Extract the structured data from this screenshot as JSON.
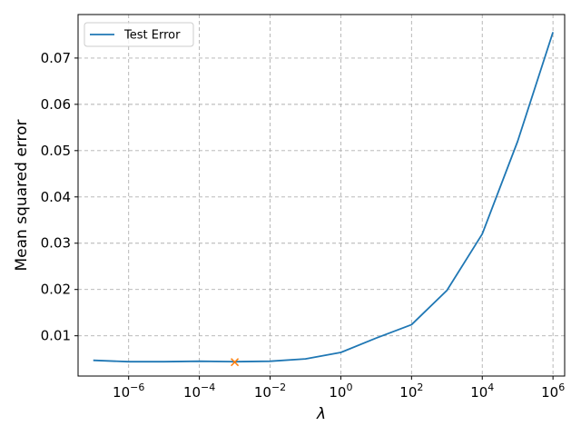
{
  "chart_data": {
    "type": "line",
    "xscale": "log",
    "xlabel": "λ",
    "ylabel": "Mean squared error",
    "xlim": [
      1e-07,
      1000000.0
    ],
    "ylim": [
      0.0,
      0.08
    ],
    "grid": true,
    "legend_position": "top-left",
    "x_ticks": [
      {
        "value": 1e-06,
        "base": "10",
        "exp": "−6"
      },
      {
        "value": 0.0001,
        "base": "10",
        "exp": "−4"
      },
      {
        "value": 0.01,
        "base": "10",
        "exp": "−2"
      },
      {
        "value": 1,
        "base": "10",
        "exp": "0"
      },
      {
        "value": 100,
        "base": "10",
        "exp": "2"
      },
      {
        "value": 10000,
        "base": "10",
        "exp": "4"
      },
      {
        "value": 1000000,
        "base": "10",
        "exp": "6"
      }
    ],
    "y_ticks": [
      {
        "value": 0.01,
        "label": "0.01"
      },
      {
        "value": 0.02,
        "label": "0.02"
      },
      {
        "value": 0.03,
        "label": "0.03"
      },
      {
        "value": 0.04,
        "label": "0.04"
      },
      {
        "value": 0.05,
        "label": "0.05"
      },
      {
        "value": 0.06,
        "label": "0.06"
      },
      {
        "value": 0.07,
        "label": "0.07"
      }
    ],
    "series": [
      {
        "name": "Test Error",
        "color": "#1f77b4",
        "x": [
          1e-07,
          1e-06,
          1e-05,
          0.0001,
          0.001,
          0.01,
          0.1,
          1,
          10,
          100,
          1000,
          10000,
          100000,
          1000000
        ],
        "y": [
          0.0047,
          0.0044,
          0.0044,
          0.0045,
          0.0044,
          0.0045,
          0.005,
          0.0064,
          0.0095,
          0.0124,
          0.0198,
          0.032,
          0.052,
          0.0756
        ]
      }
    ],
    "marker": {
      "x": 0.001,
      "y": 0.0043,
      "symbol": "x",
      "color": "#ff7f0e"
    }
  }
}
